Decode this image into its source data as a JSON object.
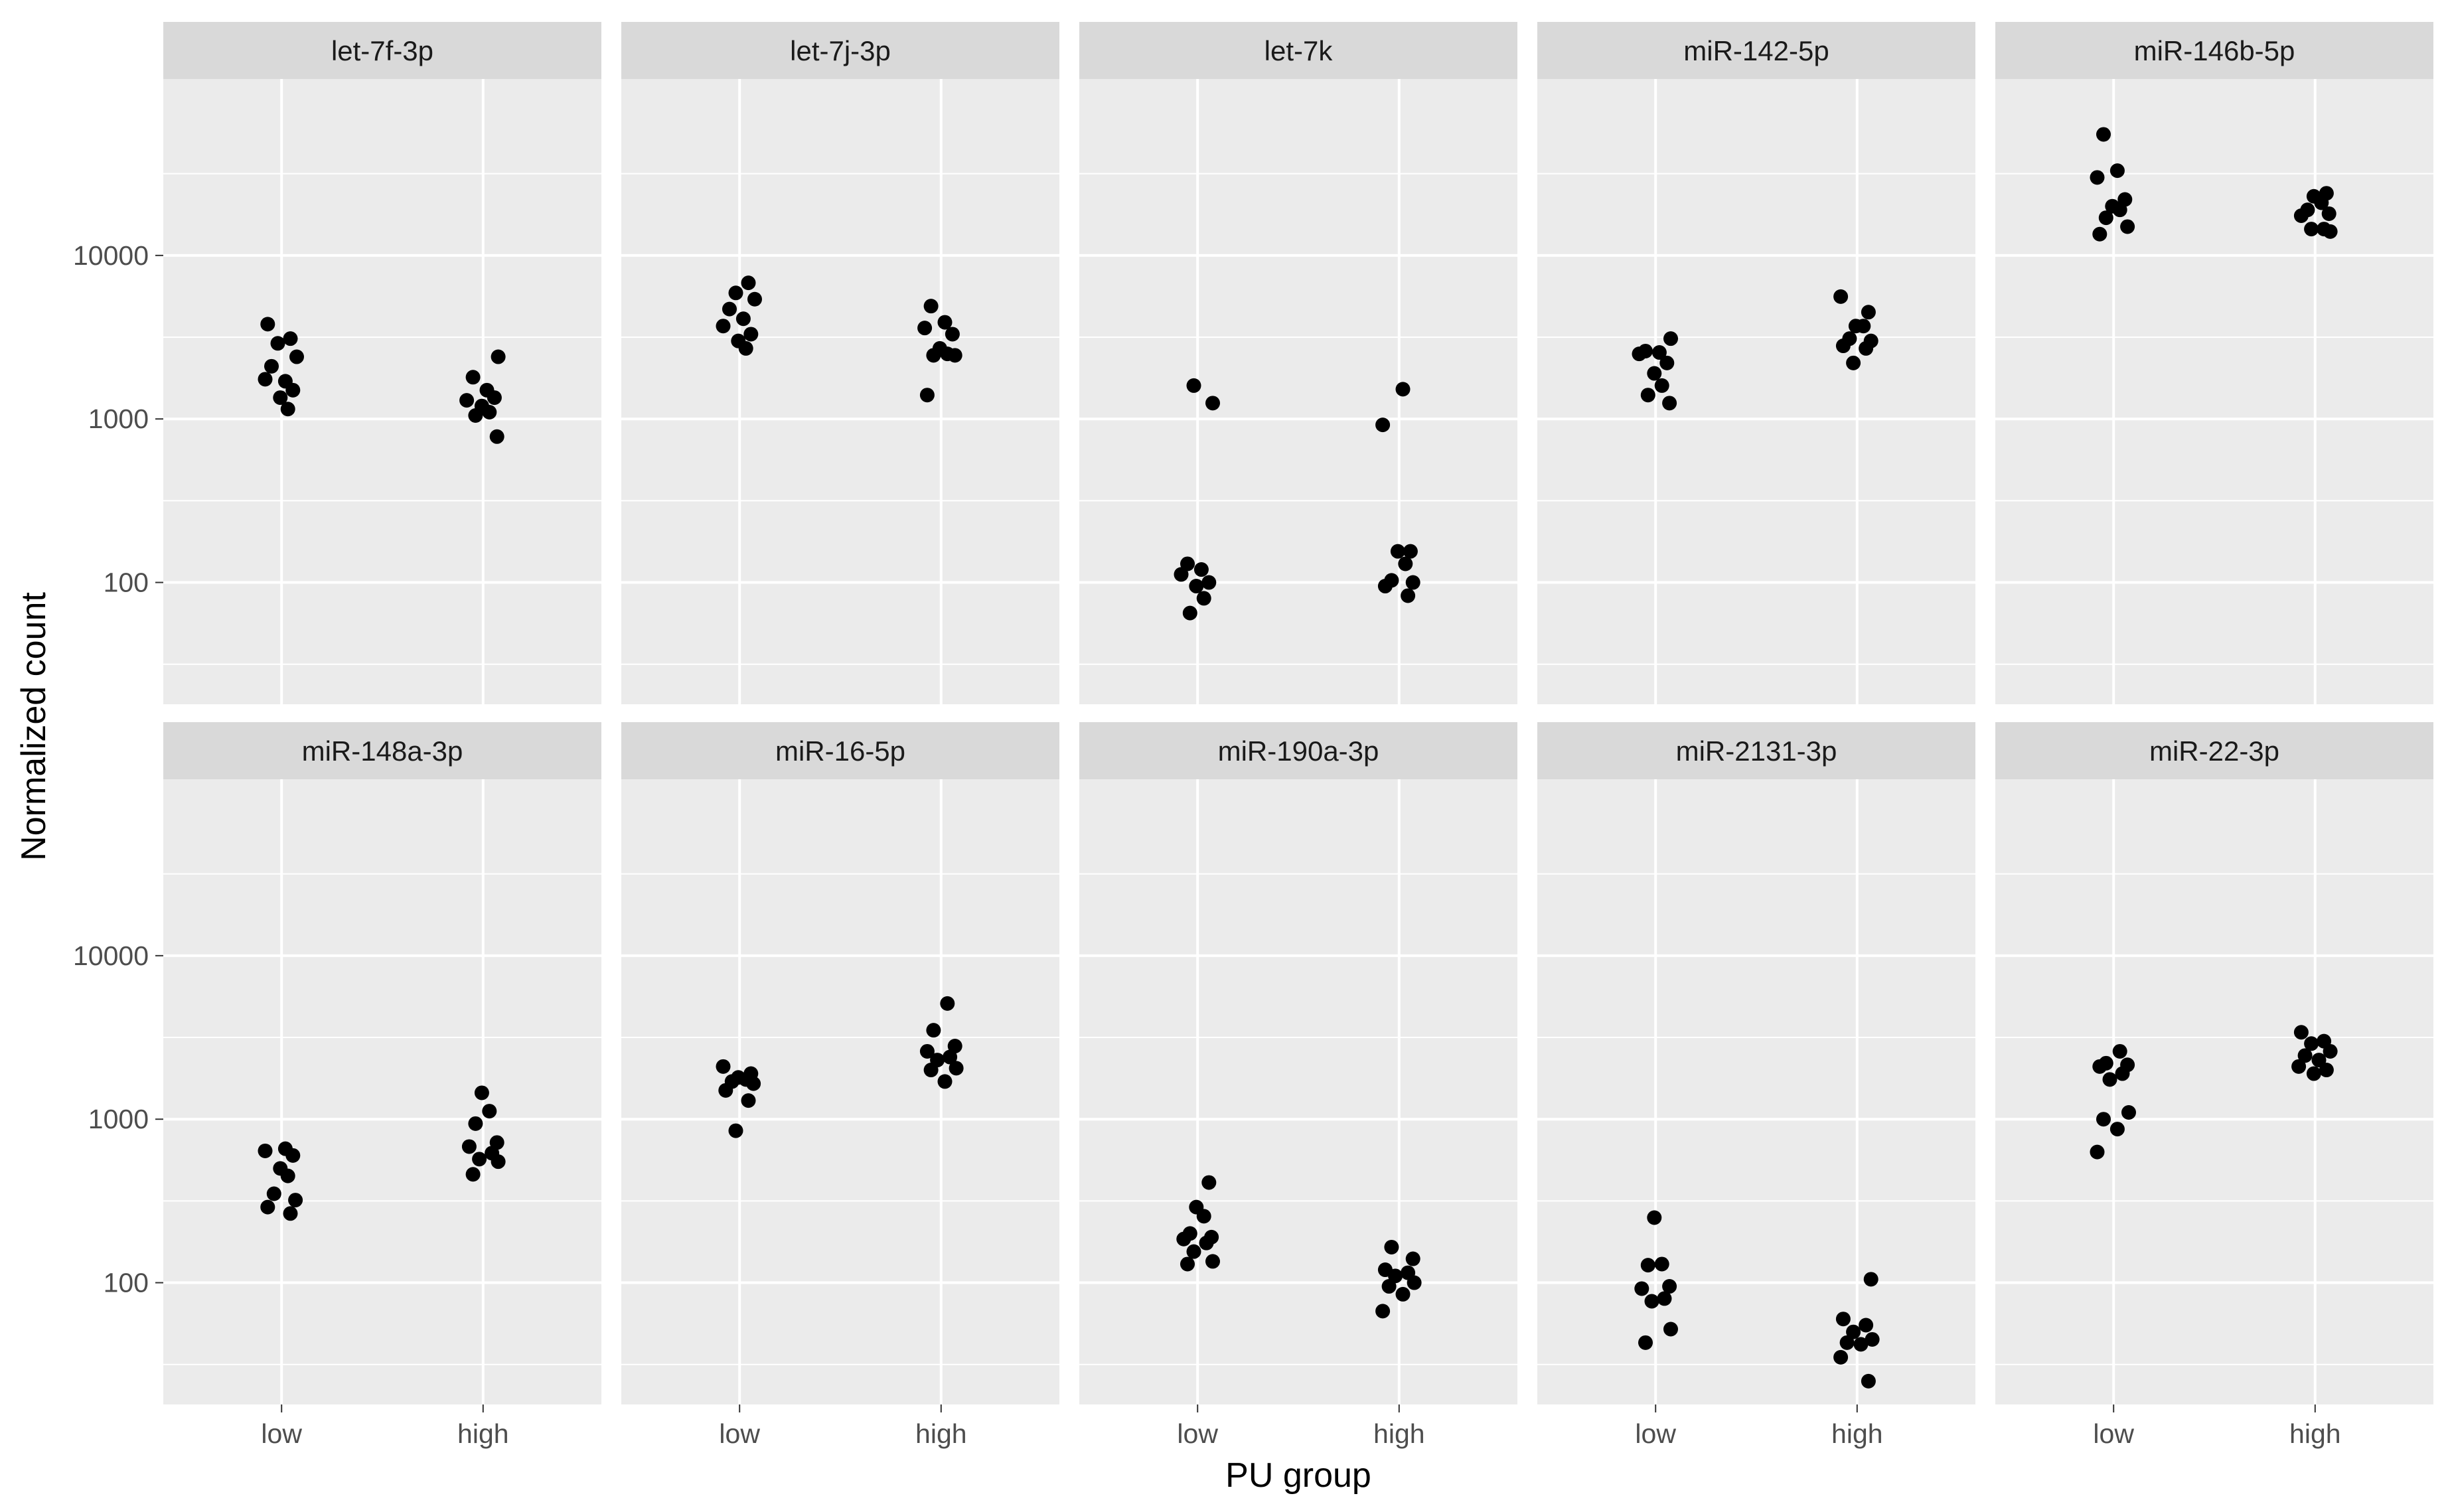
{
  "chart_data": {
    "type": "scatter",
    "subtype": "faceted strip plot (jittered points)",
    "title": "",
    "xlabel": "PU group",
    "ylabel": "Normalized count",
    "x_categories": [
      "low",
      "high"
    ],
    "y_scale": "log10",
    "y_ticks": [
      100,
      1000,
      10000
    ],
    "y_tick_labels": [
      "100",
      "1000",
      "10000"
    ],
    "ylim": [
      18,
      120000
    ],
    "grid": true,
    "legend": "none",
    "facet_layout": {
      "rows": 2,
      "cols": 5
    },
    "colors": {
      "panel_bg": "#ebebeb",
      "strip_bg": "#d9d9d9",
      "grid": "#ffffff",
      "point": "#000000"
    },
    "facets": [
      {
        "label": "let-7f-3p",
        "series": [
          {
            "x": "low",
            "values": [
              3800,
              3100,
              2900,
              2400,
              2100,
              1700,
              1750,
              1500,
              1350,
              1150
            ]
          },
          {
            "x": "high",
            "values": [
              2400,
              1800,
              1500,
              1300,
              1350,
              1200,
              1100,
              1050,
              780
            ]
          }
        ]
      },
      {
        "label": "let-7j-3p",
        "series": [
          {
            "x": "low",
            "values": [
              6800,
              5900,
              5400,
              4700,
              4100,
              3700,
              3300,
              3000,
              2700
            ]
          },
          {
            "x": "high",
            "values": [
              4900,
              3900,
              3600,
              3300,
              2700,
              2500,
              2450,
              2450,
              1400
            ]
          }
        ]
      },
      {
        "label": "let-7k",
        "series": [
          {
            "x": "low",
            "values": [
              1600,
              1250,
              130,
              120,
              112,
              100,
              95,
              80,
              65
            ]
          },
          {
            "x": "high",
            "values": [
              1520,
              920,
              155,
              155,
              130,
              103,
              100,
              95,
              83
            ]
          }
        ]
      },
      {
        "label": "miR-142-5p",
        "series": [
          {
            "x": "low",
            "values": [
              3100,
              2600,
              2550,
              2500,
              2200,
              1900,
              1600,
              1400,
              1250
            ]
          },
          {
            "x": "high",
            "values": [
              5600,
              4500,
              3700,
              3700,
              3100,
              3000,
              2800,
              2700,
              2200
            ]
          }
        ]
      },
      {
        "label": "miR-146b-5p",
        "series": [
          {
            "x": "low",
            "values": [
              55000,
              33000,
              30000,
              22000,
              20000,
              19000,
              17000,
              15000,
              13500
            ]
          },
          {
            "x": "high",
            "values": [
              24000,
              23000,
              21000,
              19000,
              18000,
              17500,
              14500,
              14500,
              14000
            ]
          }
        ]
      },
      {
        "label": "miR-148a-3p",
        "series": [
          {
            "x": "low",
            "values": [
              660,
              640,
              600,
              500,
              450,
              350,
              320,
              290,
              265
            ]
          },
          {
            "x": "high",
            "values": [
              1450,
              1120,
              940,
              720,
              680,
              620,
              570,
              550,
              460
            ]
          }
        ]
      },
      {
        "label": "miR-16-5p",
        "series": [
          {
            "x": "low",
            "values": [
              2100,
              1900,
              1800,
              1750,
              1700,
              1650,
              1500,
              1300,
              850
            ]
          },
          {
            "x": "high",
            "values": [
              5100,
              3500,
              2800,
              2600,
              2400,
              2300,
              2050,
              2000,
              1700
            ]
          }
        ]
      },
      {
        "label": "miR-190a-3p",
        "series": [
          {
            "x": "low",
            "values": [
              410,
              290,
              255,
              200,
              190,
              185,
              175,
              155,
              135,
              130
            ]
          },
          {
            "x": "high",
            "values": [
              165,
              140,
              120,
              115,
              110,
              100,
              95,
              85,
              67
            ]
          }
        ]
      },
      {
        "label": "miR-2131-3p",
        "series": [
          {
            "x": "low",
            "values": [
              250,
              130,
              128,
              95,
              92,
              80,
              77,
              52,
              43
            ]
          },
          {
            "x": "high",
            "values": [
              105,
              60,
              55,
              50,
              45,
              43,
              42,
              35,
              25
            ]
          }
        ]
      },
      {
        "label": "miR-22-3p",
        "series": [
          {
            "x": "low",
            "values": [
              2600,
              2200,
              2150,
              2100,
              1900,
              1750,
              1100,
              1000,
              870,
              630
            ]
          },
          {
            "x": "high",
            "values": [
              3400,
              3000,
              2900,
              2600,
              2450,
              2300,
              2100,
              2000,
              1900
            ]
          }
        ]
      }
    ]
  }
}
